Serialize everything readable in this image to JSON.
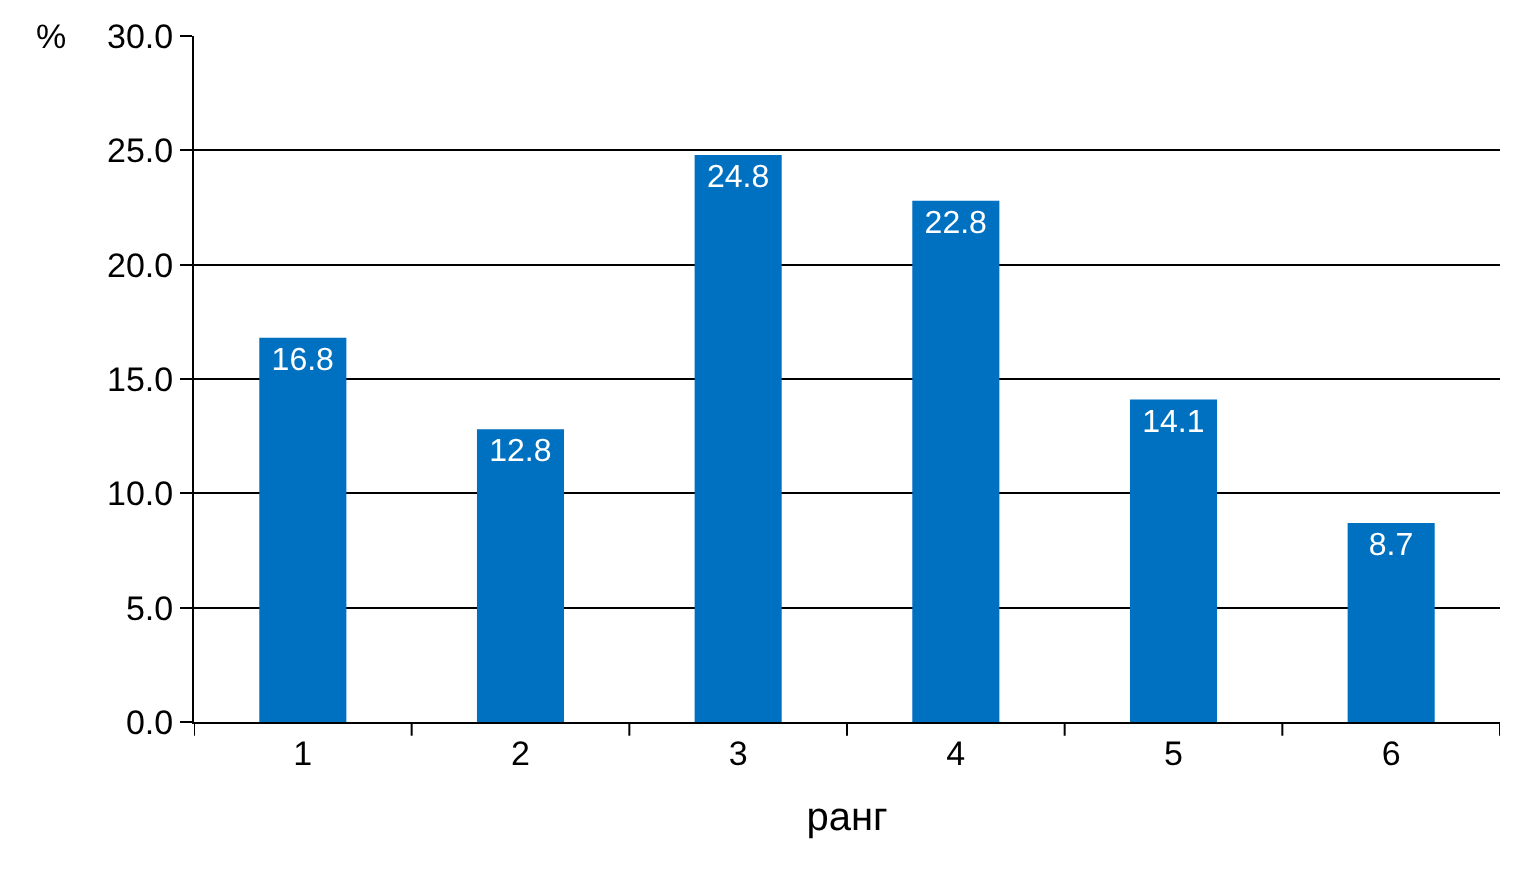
{
  "chart_data": {
    "type": "bar",
    "xlabel": "ранг",
    "ylabel": "%",
    "categories": [
      "1",
      "2",
      "3",
      "4",
      "5",
      "6"
    ],
    "values": [
      16.8,
      12.8,
      24.8,
      22.8,
      14.1,
      8.7
    ],
    "color": "#0070c0",
    "data_labels": true,
    "grid": "y",
    "legend": false,
    "ylim": [
      0,
      30
    ],
    "yticks": [
      {
        "value": 0,
        "label": "0.0"
      },
      {
        "value": 5,
        "label": "5.0"
      },
      {
        "value": 10,
        "label": "10.0"
      },
      {
        "value": 15,
        "label": "15.0"
      },
      {
        "value": 20,
        "label": "20.0"
      },
      {
        "value": 25,
        "label": "25.0"
      },
      {
        "value": 30,
        "label": "30.0"
      }
    ]
  }
}
